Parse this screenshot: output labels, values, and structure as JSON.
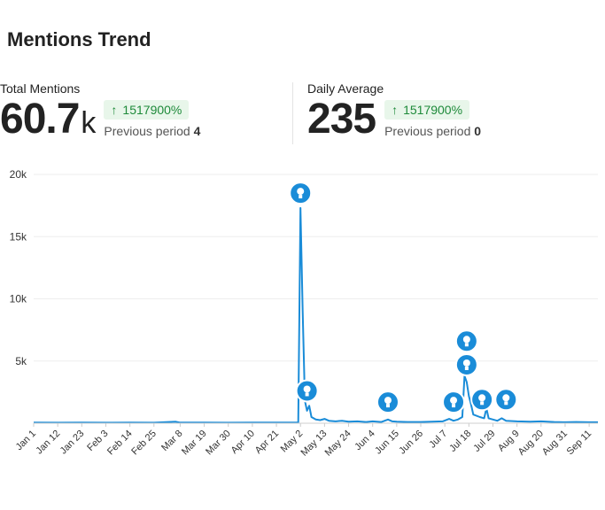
{
  "title": "Mentions Trend",
  "metrics": {
    "total": {
      "label": "Total Mentions",
      "value": "60.7",
      "unit": "k",
      "change": "1517900%",
      "prev_label": "Previous period",
      "prev_value": "4"
    },
    "daily": {
      "label": "Daily Average",
      "value": "235",
      "unit": "",
      "change": "1517900%",
      "prev_label": "Previous period",
      "prev_value": "0"
    }
  },
  "colors": {
    "line": "#1a8cd8",
    "marker": "#1a8cd8",
    "badge_bg": "#e8f6ea",
    "badge_text": "#1e8a3a",
    "grid": "#eeeeee"
  },
  "chart_data": {
    "type": "line",
    "ylim": [
      0,
      20000
    ],
    "yticks": [
      {
        "value": 5000,
        "label": "5k"
      },
      {
        "value": 10000,
        "label": "10k"
      },
      {
        "value": 15000,
        "label": "15k"
      },
      {
        "value": 20000,
        "label": "20k"
      }
    ],
    "xtick_labels": [
      "Jan 1",
      "Jan 12",
      "Jan 23",
      "Feb 3",
      "Feb 14",
      "Feb 25",
      "Mar 8",
      "Mar 19",
      "Mar 30",
      "Apr 10",
      "Apr 21",
      "May 2",
      "May 13",
      "May 24",
      "Jun 4",
      "Jun 15",
      "Jun 26",
      "Jul 7",
      "Jul 18",
      "Jul 29",
      "Aug 9",
      "Aug 20",
      "Aug 31",
      "Sep 11"
    ],
    "series": [
      {
        "points": [
          [
            "Jan 1",
            50
          ],
          [
            "Jan 12",
            40
          ],
          [
            "Jan 23",
            50
          ],
          [
            "Feb 3",
            40
          ],
          [
            "Feb 14",
            50
          ],
          [
            "Feb 25",
            40
          ],
          [
            "Mar 6",
            120
          ],
          [
            "Mar 8",
            50
          ],
          [
            "Mar 19",
            50
          ],
          [
            "Mar 30",
            40
          ],
          [
            "Apr 10",
            50
          ],
          [
            "Apr 21",
            50
          ],
          [
            "May 1",
            50
          ],
          [
            "May 2",
            17300
          ],
          [
            "May 3",
            9000
          ],
          [
            "May 4",
            1800
          ],
          [
            "May 5",
            1000
          ],
          [
            "May 6",
            1400
          ],
          [
            "May 7",
            500
          ],
          [
            "May 9",
            300
          ],
          [
            "May 11",
            250
          ],
          [
            "May 13",
            350
          ],
          [
            "May 15",
            200
          ],
          [
            "May 18",
            150
          ],
          [
            "May 21",
            200
          ],
          [
            "May 24",
            120
          ],
          [
            "May 28",
            150
          ],
          [
            "Jun 1",
            100
          ],
          [
            "Jun 4",
            150
          ],
          [
            "Jun 8",
            100
          ],
          [
            "Jun 11",
            300
          ],
          [
            "Jun 13",
            150
          ],
          [
            "Jun 15",
            120
          ],
          [
            "Jun 20",
            100
          ],
          [
            "Jun 26",
            100
          ],
          [
            "Jul 1",
            120
          ],
          [
            "Jul 6",
            150
          ],
          [
            "Jul 9",
            350
          ],
          [
            "Jul 11",
            200
          ],
          [
            "Jul 13",
            300
          ],
          [
            "Jul 15",
            500
          ],
          [
            "Jul 16",
            3800
          ],
          [
            "Jul 17",
            3300
          ],
          [
            "Jul 18",
            2200
          ],
          [
            "Jul 19",
            1500
          ],
          [
            "Jul 20",
            700
          ],
          [
            "Jul 23",
            500
          ],
          [
            "Jul 25",
            400
          ],
          [
            "Jul 26",
            1200
          ],
          [
            "Jul 27",
            400
          ],
          [
            "Jul 29",
            300
          ],
          [
            "Jul 31",
            200
          ],
          [
            "Aug 2",
            400
          ],
          [
            "Aug 4",
            200
          ],
          [
            "Aug 9",
            150
          ],
          [
            "Aug 15",
            120
          ],
          [
            "Aug 20",
            150
          ],
          [
            "Aug 26",
            100
          ],
          [
            "Aug 31",
            80
          ],
          [
            "Sep 5",
            100
          ],
          [
            "Sep 11",
            80
          ],
          [
            "Sep 15",
            80
          ]
        ]
      }
    ],
    "annotations": [
      {
        "date": "May 2",
        "value": 18500
      },
      {
        "date": "May 5",
        "value": 2600
      },
      {
        "date": "Jun 11",
        "value": 1700
      },
      {
        "date": "Jul 11",
        "value": 1700
      },
      {
        "date": "Jul 17",
        "value": 6600
      },
      {
        "date": "Jul 17",
        "value": 4700
      },
      {
        "date": "Jul 24",
        "value": 1900
      },
      {
        "date": "Aug 4",
        "value": 1900
      }
    ],
    "grid": true,
    "legend": "none"
  }
}
